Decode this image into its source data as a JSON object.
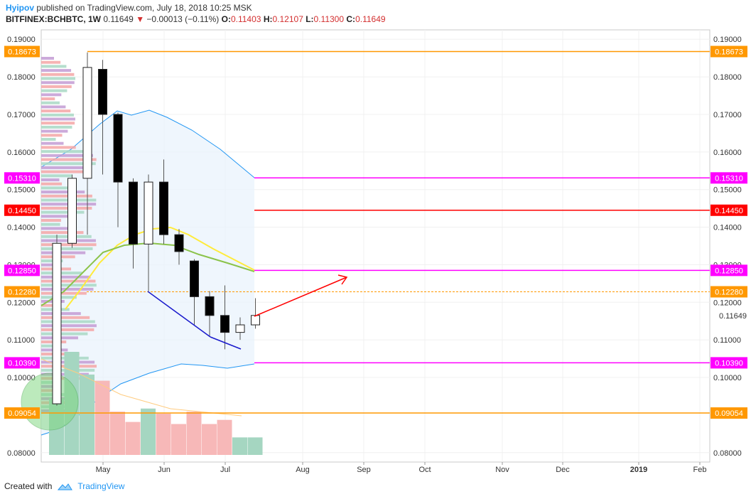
{
  "header": {
    "author": "Hyipov",
    "published": "published on TradingView.com, July 18, 2018 10:25 MSK",
    "symbol": "BITFINEX:BCHBTC, 1W",
    "last": "0.11649",
    "change": "−0.00013 (−0.11%)",
    "o_label": "O:",
    "o": "0.11403",
    "h_label": "H:",
    "h": "0.12107",
    "l_label": "L:",
    "l": "0.11300",
    "c_label": "C:",
    "c": "0.11649"
  },
  "footer": {
    "created_with": "Created with",
    "brand": "TradingView"
  },
  "colors": {
    "orange": "#ff9800",
    "magenta": "#ff00ff",
    "red": "#ff0000",
    "yellow_ma": "#ffeb3b",
    "green_ma": "#8bc34a",
    "band": "#2196f3",
    "up_vol": "#a5d6c1",
    "down_vol": "#f7b8b8"
  },
  "chart_data": {
    "type": "candlestick",
    "ylim": [
      0.0775,
      0.1925
    ],
    "y_ticks": [
      "0.19000",
      "0.18000",
      "0.17000",
      "0.16000",
      "0.15000",
      "0.14000",
      "0.13000",
      "0.12000",
      "0.11000",
      "0.10000",
      "0.08000"
    ],
    "x_ticks": [
      "May",
      "Jun",
      "Jul",
      "Aug",
      "Sep",
      "Oct",
      "Nov",
      "Dec",
      "2019",
      "Feb"
    ],
    "candles": [
      {
        "o": 0.093,
        "h": 0.138,
        "l": 0.0925,
        "c": 0.1357
      },
      {
        "o": 0.1357,
        "h": 0.154,
        "l": 0.1345,
        "c": 0.153
      },
      {
        "o": 0.153,
        "h": 0.1865,
        "l": 0.138,
        "c": 0.1825
      },
      {
        "o": 0.182,
        "h": 0.1845,
        "l": 0.154,
        "c": 0.17
      },
      {
        "o": 0.17,
        "h": 0.1705,
        "l": 0.14,
        "c": 0.152
      },
      {
        "o": 0.152,
        "h": 0.153,
        "l": 0.129,
        "c": 0.1355
      },
      {
        "o": 0.1355,
        "h": 0.154,
        "l": 0.123,
        "c": 0.152
      },
      {
        "o": 0.152,
        "h": 0.158,
        "l": 0.1355,
        "c": 0.138
      },
      {
        "o": 0.138,
        "h": 0.1395,
        "l": 0.13,
        "c": 0.1335
      },
      {
        "o": 0.131,
        "h": 0.1315,
        "l": 0.114,
        "c": 0.1215
      },
      {
        "o": 0.1215,
        "h": 0.123,
        "l": 0.111,
        "c": 0.1165
      },
      {
        "o": 0.1165,
        "h": 0.1245,
        "l": 0.1075,
        "c": 0.112
      },
      {
        "o": 0.112,
        "h": 0.116,
        "l": 0.11,
        "c": 0.114
      },
      {
        "o": 0.114,
        "h": 0.1211,
        "l": 0.113,
        "c": 0.1165
      }
    ],
    "levels": [
      {
        "label": "0.18673",
        "value": 0.18673,
        "color": "orange"
      },
      {
        "label": "0.15310",
        "value": 0.1531,
        "color": "magenta"
      },
      {
        "label": "0.14450",
        "value": 0.1445,
        "color": "red"
      },
      {
        "label": "0.12850",
        "value": 0.1285,
        "color": "magenta"
      },
      {
        "label": "0.12280",
        "value": 0.1228,
        "color": "orange",
        "dashed": true
      },
      {
        "label": "0.10390",
        "value": 0.1039,
        "color": "magenta"
      },
      {
        "label": "0.09054",
        "value": 0.09054,
        "color": "orange"
      }
    ],
    "last_price_label": "0.11649",
    "volume": [
      {
        "v": 0.55,
        "up": true
      },
      {
        "v": 1.0,
        "up": true
      },
      {
        "v": 0.78,
        "up": true
      },
      {
        "v": 0.72,
        "up": false
      },
      {
        "v": 0.42,
        "up": false
      },
      {
        "v": 0.32,
        "up": false
      },
      {
        "v": 0.45,
        "up": true
      },
      {
        "v": 0.4,
        "up": false
      },
      {
        "v": 0.3,
        "up": false
      },
      {
        "v": 0.42,
        "up": false
      },
      {
        "v": 0.3,
        "up": false
      },
      {
        "v": 0.34,
        "up": false
      },
      {
        "v": 0.17,
        "up": true
      },
      {
        "v": 0.17,
        "up": true
      }
    ]
  }
}
